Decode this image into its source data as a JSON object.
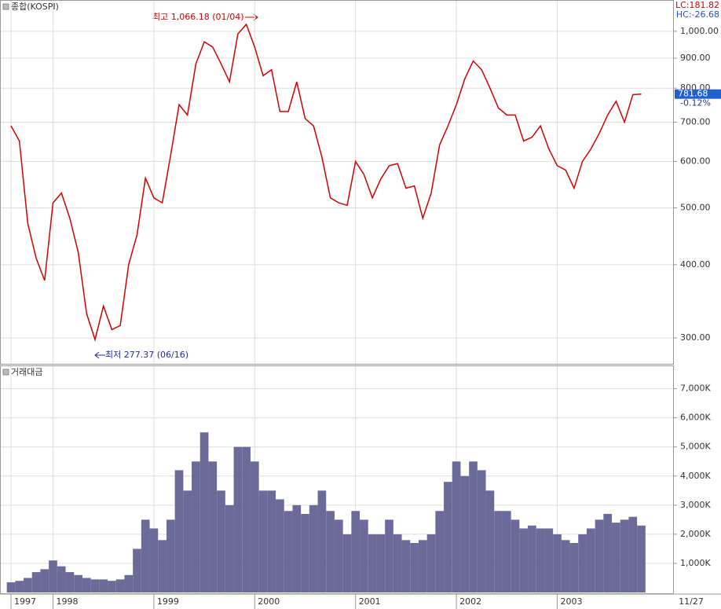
{
  "chart_data": [
    {
      "type": "line",
      "title": "종합(KOSPI)",
      "categories": [
        "1997",
        null,
        null,
        null,
        null,
        "1998",
        null,
        null,
        null,
        null,
        null,
        null,
        null,
        null,
        null,
        null,
        null,
        "1999",
        null,
        null,
        null,
        null,
        null,
        null,
        null,
        null,
        null,
        null,
        null,
        "2000",
        null,
        null,
        null,
        null,
        null,
        null,
        null,
        null,
        null,
        null,
        null,
        "2001",
        null,
        null,
        null,
        null,
        null,
        null,
        null,
        null,
        null,
        null,
        null,
        "2002",
        null,
        null,
        null,
        null,
        null,
        null,
        null,
        null,
        null,
        null,
        null,
        "2003",
        null,
        null,
        null,
        null,
        null,
        null,
        null,
        null,
        null,
        "11/27"
      ],
      "values": [
        690,
        650,
        470,
        410,
        376,
        510,
        530,
        480,
        420,
        330,
        298,
        340,
        310,
        315,
        400,
        450,
        562,
        520,
        510,
        615,
        750,
        720,
        880,
        960,
        940,
        880,
        820,
        990,
        1028,
        940,
        840,
        860,
        730,
        730,
        820,
        710,
        690,
        610,
        520,
        510,
        505,
        600,
        570,
        520,
        560,
        590,
        595,
        540,
        545,
        480,
        530,
        640,
        690,
        750,
        830,
        890,
        860,
        800,
        740,
        720,
        720,
        650,
        660,
        690,
        630,
        590,
        580,
        540,
        600,
        630,
        670,
        720,
        760,
        700,
        780,
        781.68
      ],
      "color": "#d40000",
      "log_scale": true,
      "ylim": [
        271,
        1131
      ],
      "yticks": [
        {
          "value": 300,
          "label": "300.00"
        },
        {
          "value": 400,
          "label": "400.00"
        },
        {
          "value": 500,
          "label": "500.00"
        },
        {
          "value": 600,
          "label": "600.00"
        },
        {
          "value": 700,
          "label": "700.00"
        },
        {
          "value": 800,
          "label": "800.00"
        },
        {
          "value": 900,
          "label": "900.00"
        },
        {
          "value": 1000,
          "label": "1,000.00"
        }
      ],
      "grid": true,
      "annotations": [
        "최고 1,066.18 (01/04)",
        "최저 277.37 (06/16)"
      ],
      "stats": [
        "LC:181.82",
        "HC:-26.68"
      ],
      "last_price": {
        "value": 781.68,
        "label": "781.68"
      },
      "change": "-0.12%"
    },
    {
      "type": "bar",
      "title": "거래대금",
      "values": [
        350,
        400,
        500,
        700,
        800,
        1100,
        900,
        700,
        600,
        500,
        450,
        450,
        400,
        450,
        600,
        1500,
        2500,
        2200,
        1800,
        2500,
        4200,
        3500,
        4500,
        5500,
        4500,
        3500,
        3000,
        5000,
        5000,
        4500,
        3500,
        3500,
        3200,
        2800,
        3000,
        2700,
        3000,
        3500,
        2800,
        2500,
        2000,
        2800,
        2500,
        2000,
        2000,
        2500,
        2000,
        1800,
        1700,
        1800,
        2000,
        2800,
        3800,
        4500,
        4000,
        4500,
        4200,
        3500,
        2800,
        2800,
        2500,
        2200,
        2300,
        2200,
        2200,
        2000,
        1800,
        1700,
        2000,
        2200,
        2500,
        2700,
        2400,
        2500,
        2600,
        2300
      ],
      "color": "#6b6b9a",
      "ylim": [
        0,
        7800
      ],
      "yticks": [
        {
          "value": 1000,
          "label": "1,000K"
        },
        {
          "value": 2000,
          "label": "2,000K"
        },
        {
          "value": 3000,
          "label": "3,000K"
        },
        {
          "value": 4000,
          "label": "4,000K"
        },
        {
          "value": 5000,
          "label": "5,000K"
        },
        {
          "value": 6000,
          "label": "6,000K"
        },
        {
          "value": 7000,
          "label": "7,000K"
        }
      ],
      "grid": true
    }
  ]
}
